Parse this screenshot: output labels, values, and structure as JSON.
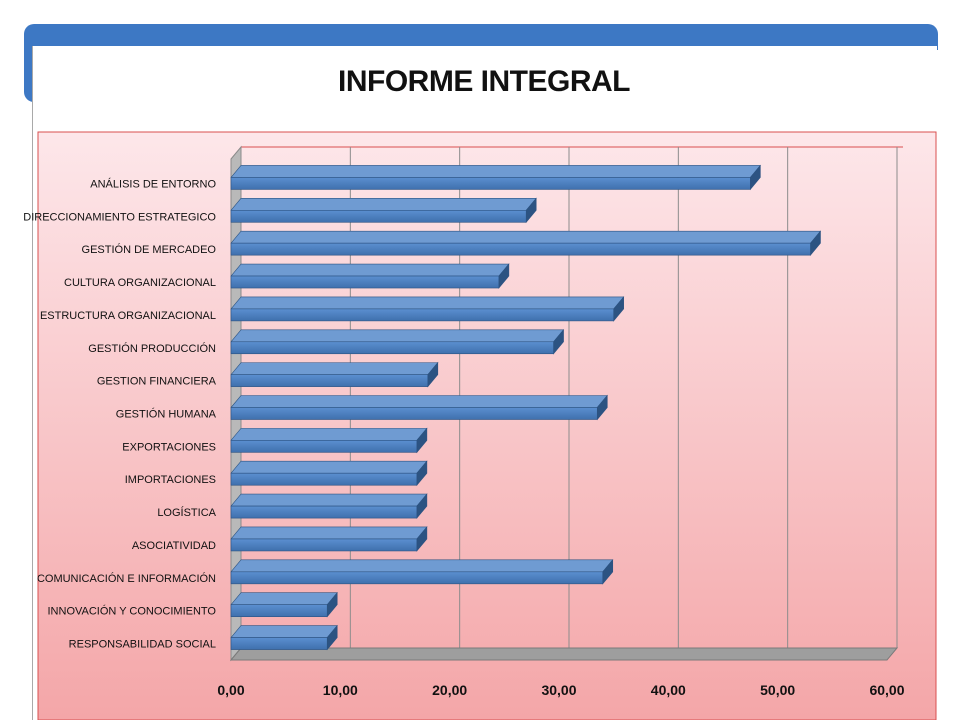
{
  "chart_data": {
    "type": "bar",
    "orientation": "horizontal",
    "title": "INFORME INTEGRAL",
    "categories": [
      "ANÁLISIS DE ENTORNO",
      "DIRECCIONAMIENTO ESTRATEGICO",
      "GESTIÓN DE MERCADEO",
      "CULTURA ORGANIZACIONAL",
      "ESTRUCTURA ORGANIZACIONAL",
      "GESTIÓN PRODUCCIÓN",
      "GESTION FINANCIERA",
      "GESTIÓN HUMANA",
      "EXPORTACIONES",
      "IMPORTACIONES",
      "LOGÍSTICA",
      "ASOCIATIVIDAD",
      "COMUNICACIÓN E INFORMACIÓN",
      "INNOVACIÓN Y CONOCIMIENTO",
      "RESPONSABILIDAD SOCIAL"
    ],
    "values": [
      47.5,
      27.0,
      53.0,
      24.5,
      35.0,
      29.5,
      18.0,
      33.5,
      17.0,
      17.0,
      17.0,
      17.0,
      34.0,
      8.8,
      8.8
    ],
    "xticks": [
      "0,00",
      "10,00",
      "20,00",
      "30,00",
      "40,00",
      "50,00",
      "60,00"
    ],
    "xlim": [
      0,
      60
    ],
    "grid": true,
    "legend": "none",
    "colors": {
      "bar": "#4f81bd",
      "bar_top": "#6f9bd2",
      "bar_shadow": "#2c5382",
      "panel_top": "#fde7ea",
      "panel_bottom": "#f4a6a8",
      "floor": "#9e9e9e",
      "frame": "#d94f4f"
    }
  }
}
